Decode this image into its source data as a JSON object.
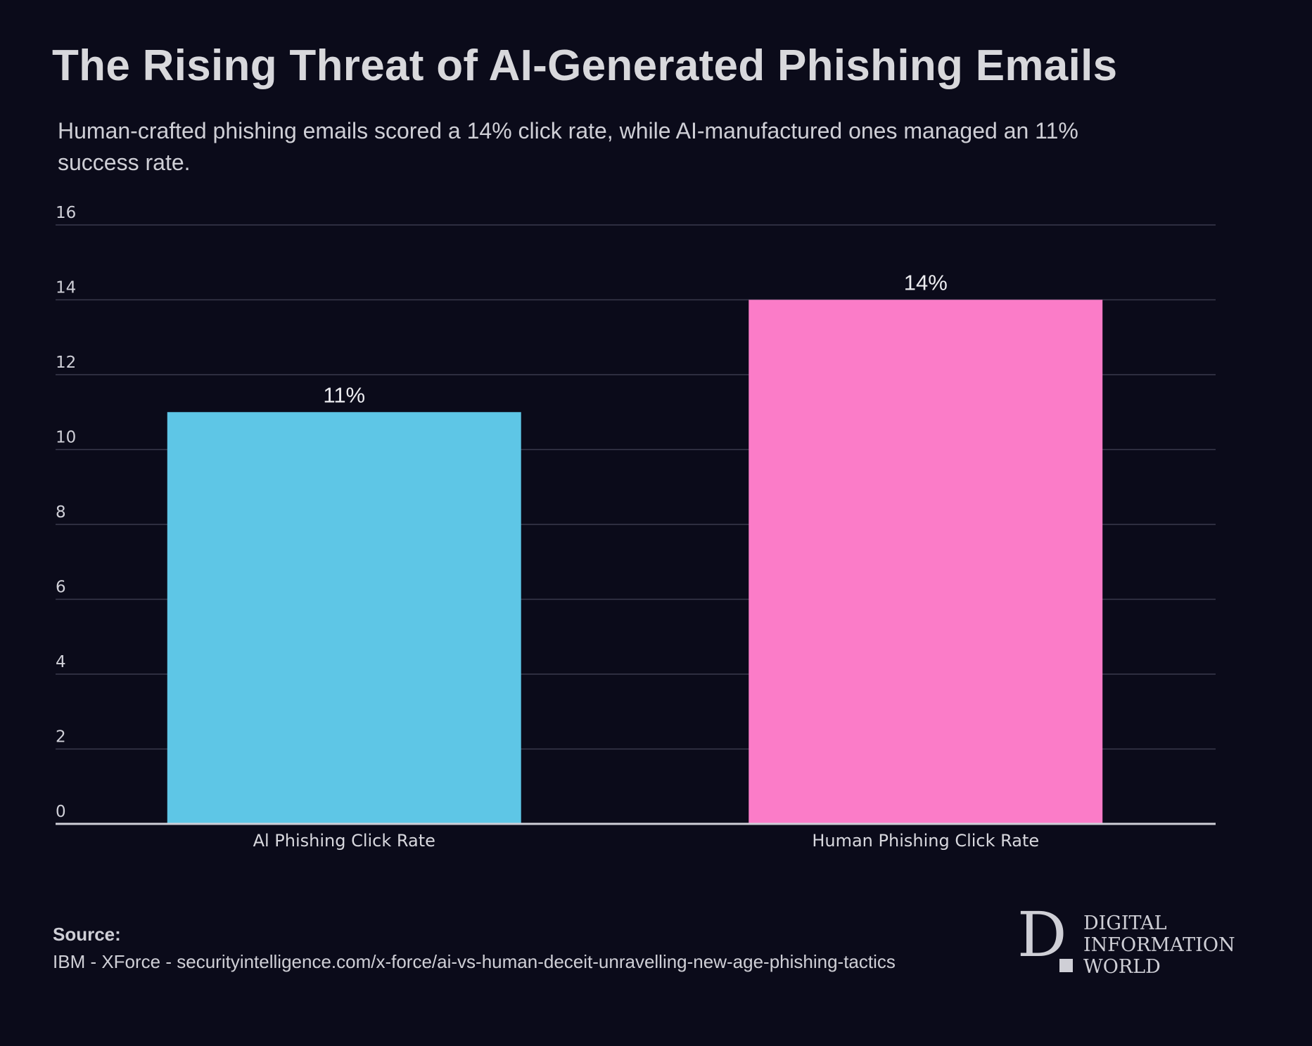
{
  "header": {
    "title": "The Rising Threat of AI-Generated Phishing Emails",
    "subtitle": "Human-crafted phishing emails scored a 14% click rate, while AI-manufactured ones managed an 11% success rate."
  },
  "chart_data": {
    "type": "bar",
    "categories": [
      "Al Phishing Click Rate",
      "Human Phishing Click Rate"
    ],
    "values": [
      11,
      14
    ],
    "data_labels": [
      "11%",
      "14%"
    ],
    "ylim": [
      0,
      16
    ],
    "yticks": [
      "0",
      "2",
      "4",
      "6",
      "8",
      "10",
      "12",
      "14",
      "16"
    ],
    "grid": true,
    "colors": [
      "#5ec6e6",
      "#fb7cc8"
    ]
  },
  "footer": {
    "source_label": "Source:",
    "source_text": "IBM - XForce - securityintelligence.com/x-force/ai-vs-human-deceit-unravelling-new-age-phishing-tactics"
  },
  "logo": {
    "letter": "D",
    "lines": [
      "DIGITAL",
      "INFORMATION",
      "WORLD"
    ]
  }
}
